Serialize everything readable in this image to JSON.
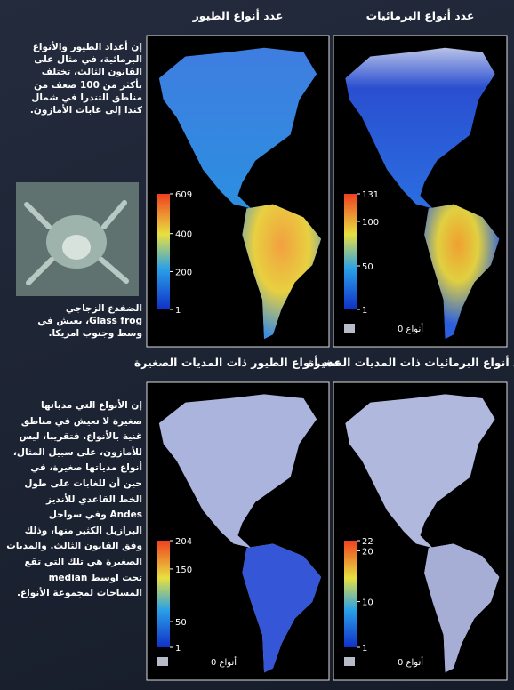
{
  "sidebar_top": [
    "إن أعداد الطيور والأنواع",
    "البرمائية، في مثال على",
    "القانون الثالث، تختلف",
    "بأكثر من 100 ضعف من",
    "مناطق التندرا في شمال",
    "كندا إلى غابات الأمازون."
  ],
  "frog_caption": [
    "الضفدع الزجاجي",
    "Glass frog، يعيش في",
    "وسط وجنوب امريكا."
  ],
  "sidebar_bottom": [
    "إن الأنواع التي مدياتها",
    "صغيرة لا تعيش في مناطق",
    "غنية بالأنواع. فتقريبا، ليس",
    "للأمازون، على سبيل المثال،",
    "أنواع مدياتها صغيرة، في",
    "حين أن للغابات على طول",
    "الخط القاعدي للأنديز",
    "Andes وفي سواحل",
    "البرازيل الكثير منها، وذلك",
    "وفق القانون الثالث. والمديات",
    "الصغيرة هي تلك التي تقع",
    "تحت اوسط median",
    "المساحات لمجموعة الأنواع."
  ],
  "panels": [
    {
      "title": "عدد أنواع الطيور",
      "scale_ticks": [
        609,
        400,
        200,
        1
      ]
    },
    {
      "title": "عدد أنواع البرمائيات",
      "scale_ticks": [
        131,
        100,
        50,
        1
      ],
      "zero_label": "أنواع 0"
    },
    {
      "title": "عدد أنواع الطيور ذات المديات الصغيرة",
      "scale_ticks": [
        204,
        150,
        50,
        1
      ],
      "zero_label": "أنواع 0"
    },
    {
      "title": "عدد أنواع البرمائيات ذات المديات الصغيرة",
      "scale_ticks": [
        22,
        20,
        10,
        1
      ],
      "zero_label": "أنواع 0"
    }
  ]
}
